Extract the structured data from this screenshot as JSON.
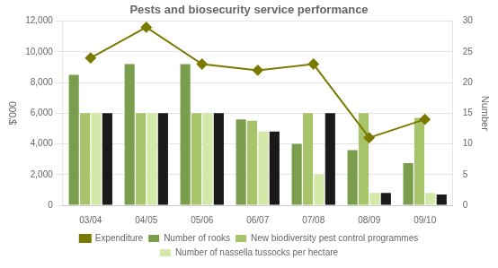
{
  "chart_data": {
    "type": "bar",
    "title": "Pests and biosecurity service performance",
    "categories": [
      "03/04",
      "04/05",
      "05/06",
      "06/07",
      "07/08",
      "08/09",
      "09/10"
    ],
    "series": [
      {
        "name": "Number of rooks",
        "color": "#7a9e4e",
        "values": [
          8500,
          9200,
          9200,
          5600,
          4000,
          3600,
          2750
        ]
      },
      {
        "name": "New biodiversity pest control programmes",
        "color": "#a8c46a",
        "values": [
          6000,
          6000,
          6000,
          5500,
          6000,
          6000,
          5700
        ]
      },
      {
        "name": "Number of nassella tussocks per hectare",
        "color": "#d4e8a8",
        "values": [
          6000,
          6000,
          6000,
          4800,
          2000,
          800,
          800
        ]
      },
      {
        "color": "#1a1a1a",
        "values": [
          6000,
          6000,
          6000,
          4800,
          6000,
          800,
          700
        ]
      },
      {
        "name": "Expenditure",
        "type": "line",
        "axis": "y2",
        "color": "#7a7a00",
        "marker": "diamond",
        "values": [
          24,
          29,
          23,
          22,
          23,
          11,
          14
        ]
      }
    ],
    "ylabel": "$'000",
    "y2label": "Number",
    "ylim": [
      0,
      12000
    ],
    "yticks": [
      0,
      {
        "value": 2000,
        "label": "2,000"
      },
      {
        "value": 4000,
        "label": "4,000"
      },
      {
        "value": 6000,
        "label": "6,000"
      },
      {
        "value": 8000,
        "label": "8,000"
      },
      {
        "value": 10000,
        "label": "10,000"
      },
      {
        "value": 12000,
        "label": "12,000"
      }
    ],
    "y2lim": [
      0,
      30
    ],
    "y2ticks": [
      0,
      5,
      10,
      15,
      20,
      25,
      30
    ],
    "grid": true,
    "legend": "bottom"
  }
}
